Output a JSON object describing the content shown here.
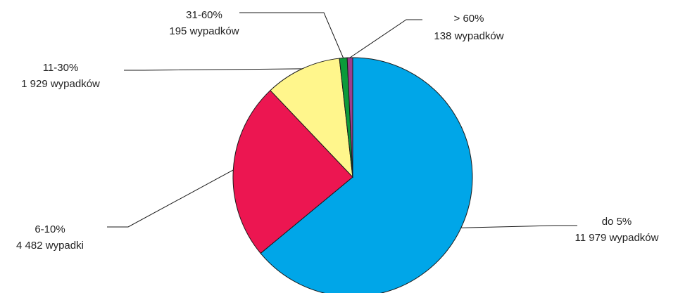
{
  "chart_data": {
    "type": "pie",
    "title": "",
    "start_angle_deg": 0,
    "direction": "clockwise",
    "legend": "none",
    "slices": [
      {
        "label": "do 5%",
        "count_text": "11 979 wypadków",
        "value": 11979,
        "color": "#00A6E8"
      },
      {
        "label": "6-10%",
        "count_text": "4 482 wypadki",
        "value": 4482,
        "color": "#EC1651"
      },
      {
        "label": "11-30%",
        "count_text": "1 929 wypadków",
        "value": 1929,
        "color": "#FFF68C"
      },
      {
        "label": "31-60%",
        "count_text": "195 wypadków",
        "value": 195,
        "color": "#0B9A3A"
      },
      {
        "label": "> 60%",
        "count_text": "138 wypadków",
        "value": 138,
        "color": "#9C3D8E"
      }
    ]
  }
}
